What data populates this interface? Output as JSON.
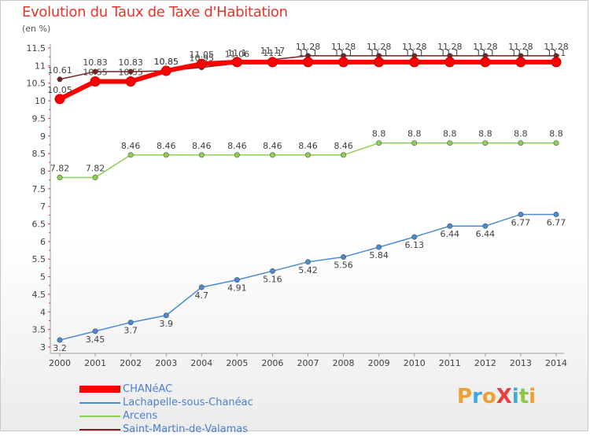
{
  "header": {
    "title": "Evolution du Taux de Taxe d'Habitation",
    "subtitle": "(en %)"
  },
  "logo": {
    "text": "ProXiti",
    "colors": [
      "#f0a030",
      "#3fa8e0",
      "#f0a030",
      "#e84040",
      "#3fa8e0",
      "#8cc63f",
      "#f0a030"
    ]
  },
  "chart_data": {
    "type": "line",
    "title": "Evolution du Taux de Taxe d'Habitation",
    "ylabel": "(en %)",
    "xlabel": "",
    "ylim": [
      3,
      11.5
    ],
    "yticks": [
      "3",
      "3.5",
      "4",
      "4.5",
      "5",
      "5.5",
      "6",
      "6.5",
      "7",
      "7.5",
      "8",
      "8.5",
      "9",
      "9.5",
      "10",
      "10.5",
      "11",
      "11.5"
    ],
    "x": [
      "2000",
      "2001",
      "2002",
      "2003",
      "2004",
      "2005",
      "2006",
      "2007",
      "2008",
      "2009",
      "2010",
      "2011",
      "2012",
      "2013",
      "2014"
    ],
    "grid": false,
    "legend_position": "bottom-left",
    "series": [
      {
        "name": "CHANéAC",
        "color": "#ff0000",
        "values": [
          10.05,
          10.55,
          10.55,
          10.85,
          11.05,
          11.1,
          11.1,
          11.1,
          11.1,
          11.1,
          11.1,
          11.1,
          11.1,
          11.1,
          11.1
        ],
        "labels": [
          "10.05",
          "10.55",
          "10.55",
          "10.85",
          "11.05",
          "11.1",
          "11.1",
          "11.1",
          "11.1",
          "11.1",
          "11.1",
          "11.1",
          "11.1",
          "11.1",
          "11.1"
        ]
      },
      {
        "name": "Lachapelle-sous-Chanéac",
        "color": "#4a8ad0",
        "values": [
          3.2,
          3.45,
          3.7,
          3.9,
          4.7,
          4.91,
          5.16,
          5.42,
          5.56,
          5.84,
          6.13,
          6.44,
          6.44,
          6.77,
          6.77
        ],
        "labels": [
          "3.2",
          "3.45",
          "3.7",
          "3.9",
          "4.7",
          "4.91",
          "5.16",
          "5.42",
          "5.56",
          "5.84",
          "6.13",
          "6.44",
          "6.44",
          "6.77",
          "6.77"
        ]
      },
      {
        "name": "Arcens",
        "color": "#8cd050",
        "values": [
          7.82,
          7.82,
          8.46,
          8.46,
          8.46,
          8.46,
          8.46,
          8.46,
          8.46,
          8.8,
          8.8,
          8.8,
          8.8,
          8.8,
          8.8
        ],
        "labels": [
          "7.82",
          "7.82",
          "8.46",
          "8.46",
          "8.46",
          "8.46",
          "8.46",
          "8.46",
          "8.46",
          "8.8",
          "8.8",
          "8.8",
          "8.8",
          "8.8",
          "8.8"
        ]
      },
      {
        "name": "Saint-Martin-de-Valamas",
        "color": "#7a2020",
        "values": [
          10.61,
          10.83,
          10.83,
          10.85,
          10.95,
          11.06,
          11.17,
          11.28,
          11.28,
          11.28,
          11.28,
          11.28,
          11.28,
          11.28,
          11.28
        ],
        "labels": [
          "10.61",
          "10.83",
          "10.83",
          "10.85",
          "10.95",
          "11.06",
          "11.17",
          "11.28",
          "11.28",
          "11.28",
          "11.28",
          "11.28",
          "11.28",
          "11.28",
          "11.28"
        ]
      }
    ]
  }
}
